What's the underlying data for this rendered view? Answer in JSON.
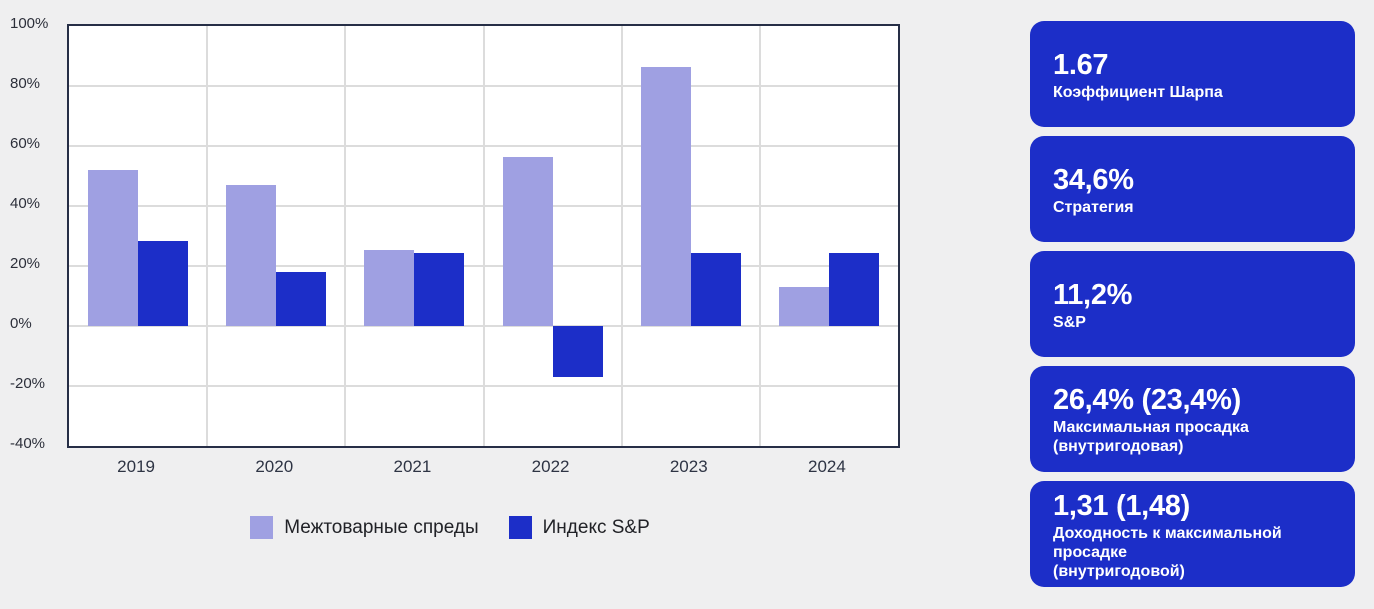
{
  "colors": {
    "background": "#efeff0",
    "plot_background": "#ffffff",
    "plot_border": "#262e46",
    "gridline": "#dcdcdc",
    "series_spreads": "#9fa0e2",
    "series_sp": "#1c2ec8",
    "card_background": "#1c2ec8",
    "card_text": "#ffffff",
    "axis_text": "#2c2f3a"
  },
  "chart_data": {
    "type": "bar",
    "categories": [
      "2019",
      "2020",
      "2021",
      "2022",
      "2023",
      "2024"
    ],
    "series": [
      {
        "name": "Межтоварные спреды",
        "color": "#9fa0e2",
        "values": [
          52,
          47,
          25.5,
          56.5,
          86.5,
          13
        ]
      },
      {
        "name": "Индекс S&P",
        "color": "#1c2ec8",
        "values": [
          28.5,
          18,
          24.5,
          -17,
          24.5,
          24.5
        ]
      }
    ],
    "title": "",
    "xlabel": "",
    "ylabel": "",
    "ylim": [
      -40,
      100
    ],
    "ytick_step": 20,
    "ytick_labels": [
      "100%",
      "80%",
      "60%",
      "40%",
      "20%",
      "0%",
      "-20%",
      "-40%"
    ],
    "grid": true,
    "legend_position": "bottom"
  },
  "cards": [
    {
      "value": "1.67",
      "label": "Коэффициент Шарпа"
    },
    {
      "value": "34,6%",
      "label": "Стратегия"
    },
    {
      "value": "11,2%",
      "label": "S&P"
    },
    {
      "value": "26,4% (23,4%)",
      "label": "Максимальная просадка\n(внутригодовая)"
    },
    {
      "value": "1,31 (1,48)",
      "label": "Доходность к максимальной просадке\n(внутригодовой)"
    }
  ]
}
